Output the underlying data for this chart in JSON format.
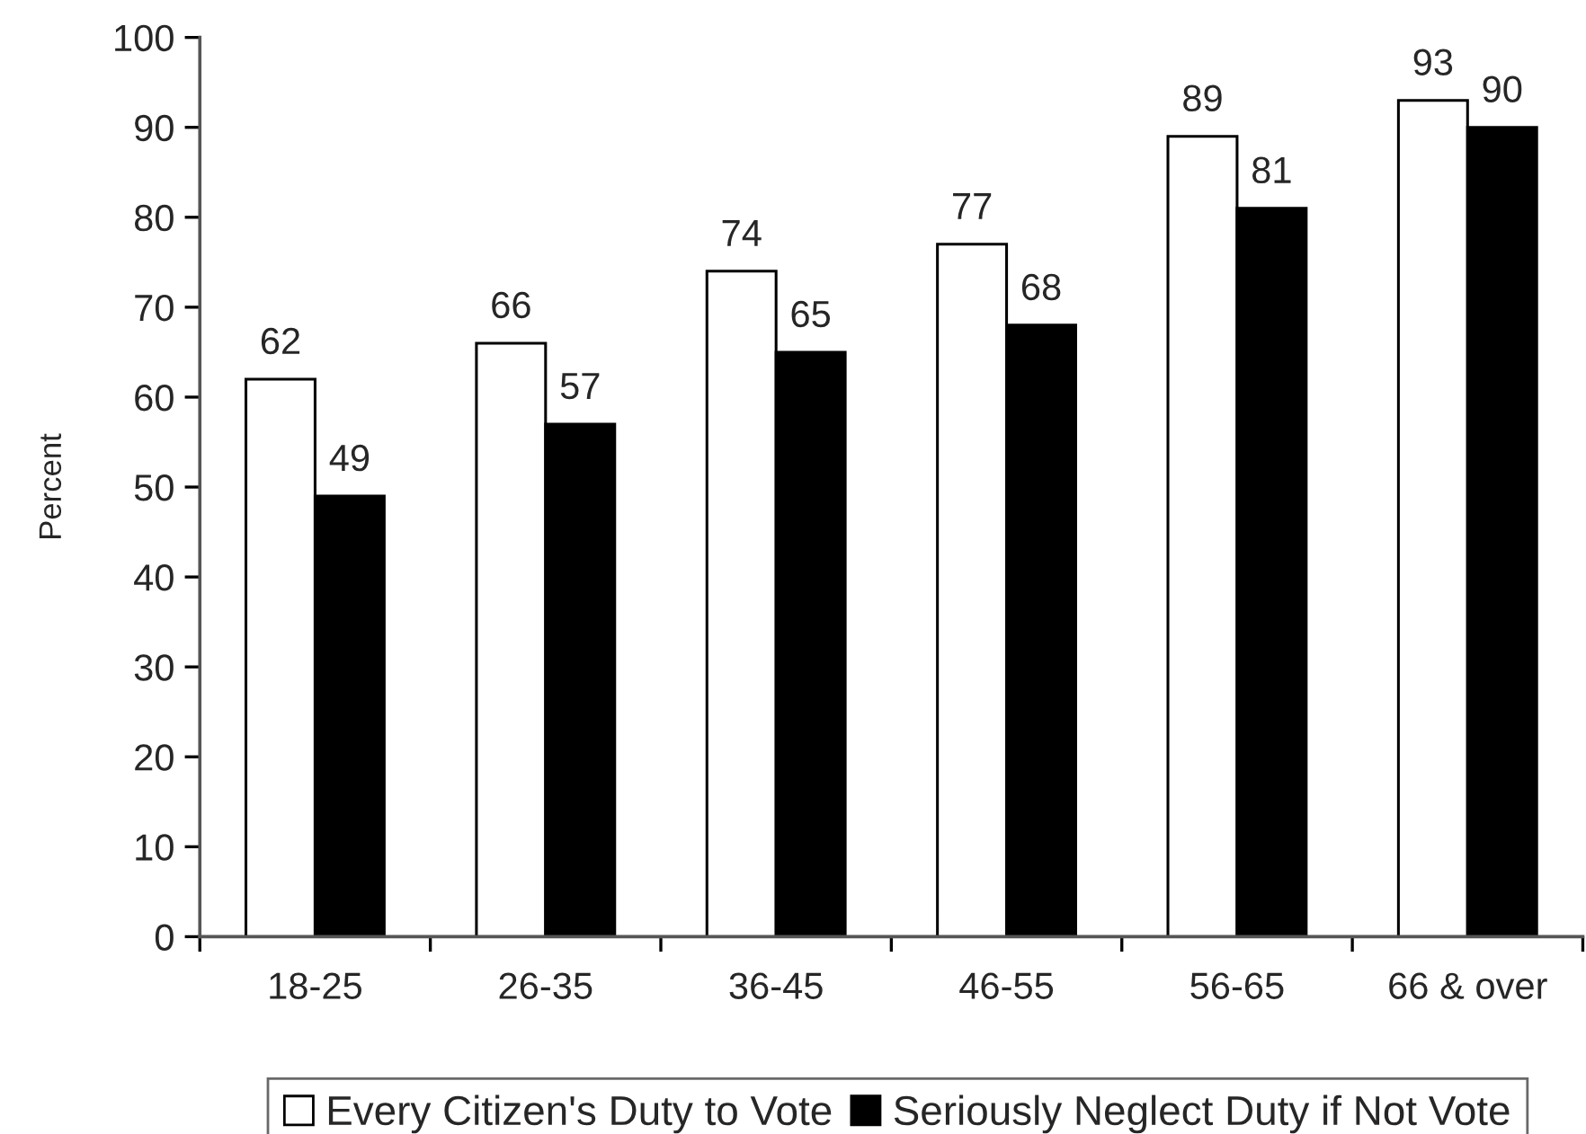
{
  "chart_data": {
    "type": "bar",
    "ylabel": "Percent",
    "categories": [
      "18-25",
      "26-35",
      "36-45",
      "46-55",
      "56-65",
      "66 & over"
    ],
    "series": [
      {
        "name": "Every Citizen's Duty to Vote",
        "color": "#ffffff",
        "values": [
          62,
          66,
          74,
          77,
          89,
          93
        ]
      },
      {
        "name": "Seriously Neglect Duty if Not Vote",
        "color": "#000000",
        "values": [
          49,
          57,
          65,
          68,
          81,
          90
        ]
      }
    ],
    "ylim": [
      0,
      100
    ],
    "yticks": [
      0,
      10,
      20,
      30,
      40,
      50,
      60,
      70,
      80,
      90,
      100
    ],
    "data_labels": true,
    "grid": false,
    "legend": "bottom"
  }
}
